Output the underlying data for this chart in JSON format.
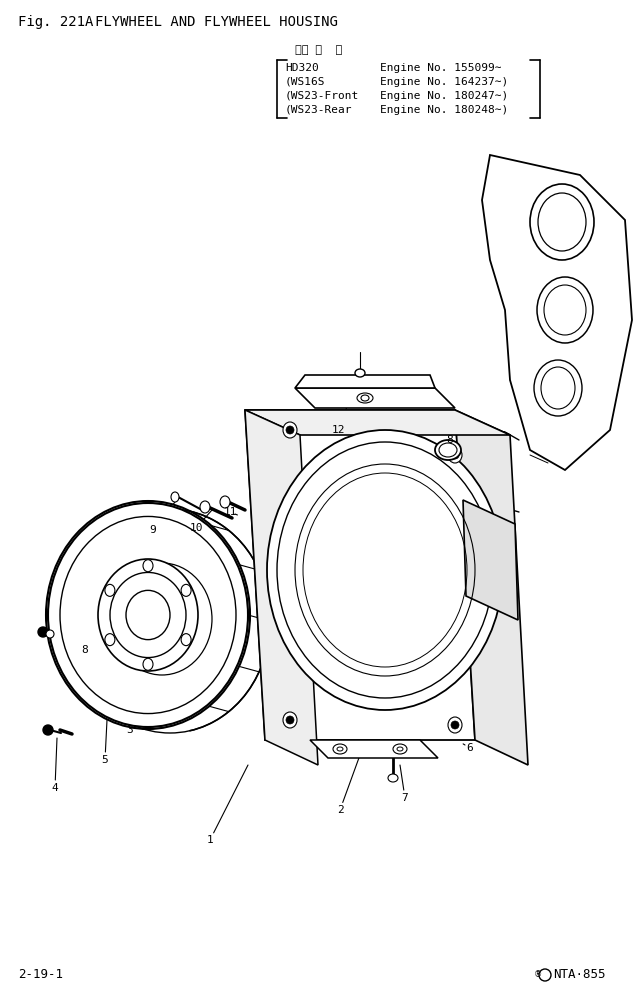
{
  "title_fig": "Fig. 221A",
  "title_text": "FLYWHEEL AND FLYWHEEL HOUSING",
  "app_header": "通用 号  機",
  "app_lines": [
    [
      "HD320",
      "Engine No. 155099∼"
    ],
    [
      "(WS16S",
      "Engine No. 164237∼)"
    ],
    [
      "(WS23-Front",
      "Engine No. 180247∼)"
    ],
    [
      "(WS23-Rear",
      "Engine No. 180248∼)"
    ]
  ],
  "page_left": "2-19-1",
  "page_right": "® NTA·855",
  "bg_color": "#ffffff"
}
